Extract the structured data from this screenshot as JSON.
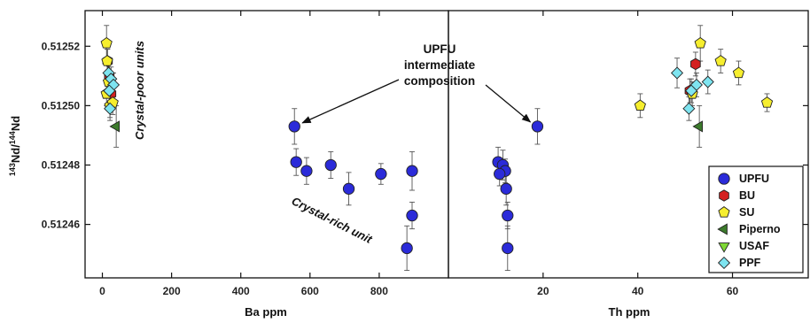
{
  "chart_data": [
    {
      "type": "scatter",
      "panel": "left",
      "xlabel": "Ba ppm",
      "ylabel": "143Nd/144Nd",
      "ylabel_parts": {
        "sup1": "143",
        "base1": "Nd/",
        "sup2": "144",
        "base2": "Nd"
      },
      "xlim": [
        -50,
        1000
      ],
      "ylim": [
        0.512442,
        0.512532
      ],
      "xticks": [
        0,
        200,
        400,
        600,
        800
      ],
      "xtick_labels": [
        "0",
        "200",
        "400",
        "600",
        "800"
      ],
      "yticks": [
        0.51246,
        0.51248,
        0.5125,
        0.51252
      ],
      "ytick_labels": [
        "0.51246",
        "0.51248",
        "0.51250",
        "0.51252"
      ],
      "grid": false,
      "series": [
        {
          "name": "UPFU",
          "points": [
            {
              "x": 555,
              "y": 0.512493,
              "err": 6e-06
            },
            {
              "x": 560,
              "y": 0.512481,
              "err": 4.5e-06
            },
            {
              "x": 590,
              "y": 0.512478,
              "err": 4.5e-06
            },
            {
              "x": 660,
              "y": 0.51248,
              "err": 4.5e-06
            },
            {
              "x": 712,
              "y": 0.512472,
              "err": 5.5e-06
            },
            {
              "x": 805,
              "y": 0.512477,
              "err": 3.5e-06
            },
            {
              "x": 895,
              "y": 0.512478,
              "err": 6.5e-06
            },
            {
              "x": 895,
              "y": 0.512463,
              "err": 4.5e-06
            },
            {
              "x": 880,
              "y": 0.512452,
              "err": 7.5e-06
            }
          ]
        },
        {
          "name": "BU",
          "points": [
            {
              "x": 15,
              "y": 0.512515,
              "err": 4e-06
            },
            {
              "x": 20,
              "y": 0.51251,
              "err": 4e-06
            },
            {
              "x": 25,
              "y": 0.512504,
              "err": 4e-06
            }
          ]
        },
        {
          "name": "SU",
          "points": [
            {
              "x": 12,
              "y": 0.512521,
              "err": 6e-06
            },
            {
              "x": 14,
              "y": 0.512515,
              "err": 4e-06
            },
            {
              "x": 18,
              "y": 0.512508,
              "err": 4e-06
            },
            {
              "x": 12,
              "y": 0.512504,
              "err": 4e-06
            },
            {
              "x": 22,
              "y": 0.5125,
              "err": 4e-06
            },
            {
              "x": 30,
              "y": 0.512501,
              "err": 4e-06
            }
          ]
        },
        {
          "name": "Piperno",
          "points": [
            {
              "x": 40,
              "y": 0.512493,
              "err": 7e-06
            }
          ]
        },
        {
          "name": "USAF",
          "points": []
        },
        {
          "name": "PPF",
          "points": [
            {
              "x": 18,
              "y": 0.512511,
              "err": 4e-06
            },
            {
              "x": 25,
              "y": 0.512509,
              "err": 4e-06
            },
            {
              "x": 32,
              "y": 0.512507,
              "err": 4e-06
            },
            {
              "x": 20,
              "y": 0.512505,
              "err": 4e-06
            },
            {
              "x": 22,
              "y": 0.512499,
              "err": 4e-06
            }
          ]
        }
      ]
    },
    {
      "type": "scatter",
      "panel": "right",
      "xlabel": "Th ppm",
      "xlim": [
        0,
        76
      ],
      "ylim": [
        0.512442,
        0.512532
      ],
      "xticks": [
        20,
        40,
        60
      ],
      "xtick_labels": [
        "20",
        "40",
        "60"
      ],
      "grid": false,
      "series": [
        {
          "name": "UPFU",
          "points": [
            {
              "x": 18.8,
              "y": 0.512493,
              "err": 6e-06
            },
            {
              "x": 10.5,
              "y": 0.512481,
              "err": 5e-06
            },
            {
              "x": 11.5,
              "y": 0.51248,
              "err": 5e-06
            },
            {
              "x": 12,
              "y": 0.512478,
              "err": 4e-06
            },
            {
              "x": 10.8,
              "y": 0.512477,
              "err": 4e-06
            },
            {
              "x": 12.2,
              "y": 0.512472,
              "err": 5.5e-06
            },
            {
              "x": 12.5,
              "y": 0.512463,
              "err": 4.5e-06
            },
            {
              "x": 12.5,
              "y": 0.512452,
              "err": 7.5e-06
            }
          ]
        },
        {
          "name": "BU",
          "points": [
            {
              "x": 52.2,
              "y": 0.512514,
              "err": 4e-06
            },
            {
              "x": 51,
              "y": 0.512505,
              "err": 4e-06
            }
          ]
        },
        {
          "name": "SU",
          "points": [
            {
              "x": 53.2,
              "y": 0.512521,
              "err": 6e-06
            },
            {
              "x": 57.5,
              "y": 0.512515,
              "err": 4e-06
            },
            {
              "x": 61.3,
              "y": 0.512511,
              "err": 4e-06
            },
            {
              "x": 51.5,
              "y": 0.512504,
              "err": 4e-06
            },
            {
              "x": 67.3,
              "y": 0.512501,
              "err": 3e-06
            },
            {
              "x": 40.5,
              "y": 0.5125,
              "err": 4e-06
            }
          ]
        },
        {
          "name": "Piperno",
          "points": [
            {
              "x": 53,
              "y": 0.512493,
              "err": 7e-06
            }
          ]
        },
        {
          "name": "USAF",
          "points": []
        },
        {
          "name": "PPF",
          "points": [
            {
              "x": 48.3,
              "y": 0.512511,
              "err": 5e-06
            },
            {
              "x": 54.8,
              "y": 0.512508,
              "err": 4e-06
            },
            {
              "x": 52.4,
              "y": 0.512507,
              "err": 4e-06
            },
            {
              "x": 51.3,
              "y": 0.512505,
              "err": 4e-06
            },
            {
              "x": 50.8,
              "y": 0.512499,
              "err": 4e-06
            }
          ]
        }
      ]
    }
  ],
  "series_styles": [
    {
      "name": "UPFU",
      "marker": "circle",
      "color": "#2b2bd9"
    },
    {
      "name": "BU",
      "marker": "hexagon",
      "color": "#d42121"
    },
    {
      "name": "SU",
      "marker": "pentagon",
      "color": "#f6ee2e"
    },
    {
      "name": "Piperno",
      "marker": "triangle-left",
      "color": "#3c7a2c"
    },
    {
      "name": "USAF",
      "marker": "triangle-down",
      "color": "#7fd836"
    },
    {
      "name": "PPF",
      "marker": "diamond",
      "color": "#7ee4f0"
    }
  ],
  "annotations": {
    "crystal_poor": "Crystal-poor units",
    "crystal_rich": "Crystal-rich unit",
    "upfu_lines": [
      "UPFU",
      "intermediate",
      "composition"
    ],
    "arrow_left_target": {
      "x": 555,
      "y": 0.512493
    },
    "arrow_right_target": {
      "x": 18.8,
      "y": 0.512493
    }
  }
}
